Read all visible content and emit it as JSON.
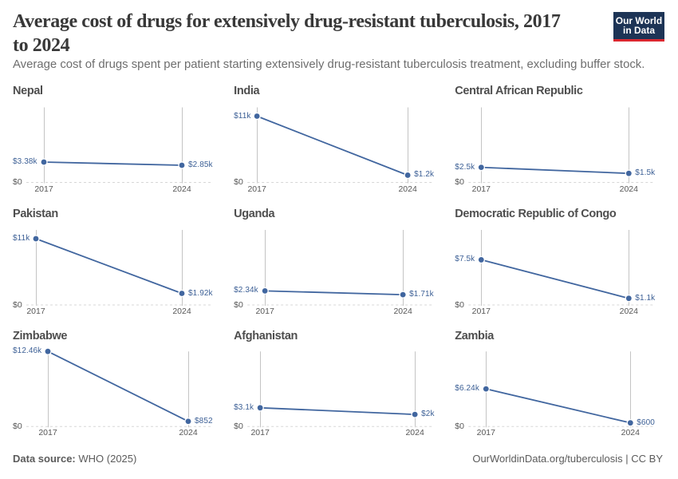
{
  "header": {
    "title": "Average cost of drugs for extensively drug-resistant tuberculosis, 2017 to 2024",
    "title_lines": [
      "Average cost of drugs for extensively drug-resistant tuberculosis, 2017",
      "to 2024"
    ],
    "subtitle": "Average cost of drugs spent per patient starting extensively drug-resistant tuberculosis treatment, excluding buffer stock.",
    "logo": {
      "line1": "Our World",
      "line2": "in Data"
    }
  },
  "chart_data": {
    "type": "line",
    "x": [
      2017,
      2024
    ],
    "x_tick_labels": [
      "2017",
      "2024"
    ],
    "ylim": [
      0,
      12460
    ],
    "zero_label": "$0",
    "grid": "zero-dashed-line",
    "legend_position": "none",
    "series": [
      {
        "name": "Nepal",
        "values": [
          3380,
          2850
        ],
        "value_labels": [
          "$3.38k",
          "$2.85k"
        ]
      },
      {
        "name": "India",
        "values": [
          11000,
          1200
        ],
        "value_labels": [
          "$11k",
          "$1.2k"
        ]
      },
      {
        "name": "Central African Republic",
        "values": [
          2500,
          1500
        ],
        "value_labels": [
          "$2.5k",
          "$1.5k"
        ]
      },
      {
        "name": "Pakistan",
        "values": [
          11000,
          1920
        ],
        "value_labels": [
          "$11k",
          "$1.92k"
        ]
      },
      {
        "name": "Uganda",
        "values": [
          2340,
          1710
        ],
        "value_labels": [
          "$2.34k",
          "$1.71k"
        ]
      },
      {
        "name": "Democratic Republic of Congo",
        "values": [
          7500,
          1100
        ],
        "value_labels": [
          "$7.5k",
          "$1.1k"
        ]
      },
      {
        "name": "Zimbabwe",
        "values": [
          12460,
          852
        ],
        "value_labels": [
          "$12.46k",
          "$852"
        ]
      },
      {
        "name": "Afghanistan",
        "values": [
          3100,
          2000
        ],
        "value_labels": [
          "$3.1k",
          "$2k"
        ]
      },
      {
        "name": "Zambia",
        "values": [
          6240,
          600
        ],
        "value_labels": [
          "$6.24k",
          "$600"
        ]
      }
    ],
    "colors": {
      "line": "#41669f",
      "value_label": "#3d6096",
      "axis_line": "#c4c4c4",
      "zero_line": "#d7d7d7",
      "tick_text": "#575757"
    }
  },
  "footer": {
    "source_label": "Data source:",
    "source_value": "WHO (2025)",
    "right_text": "OurWorldinData.org/tuberculosis | CC BY"
  }
}
